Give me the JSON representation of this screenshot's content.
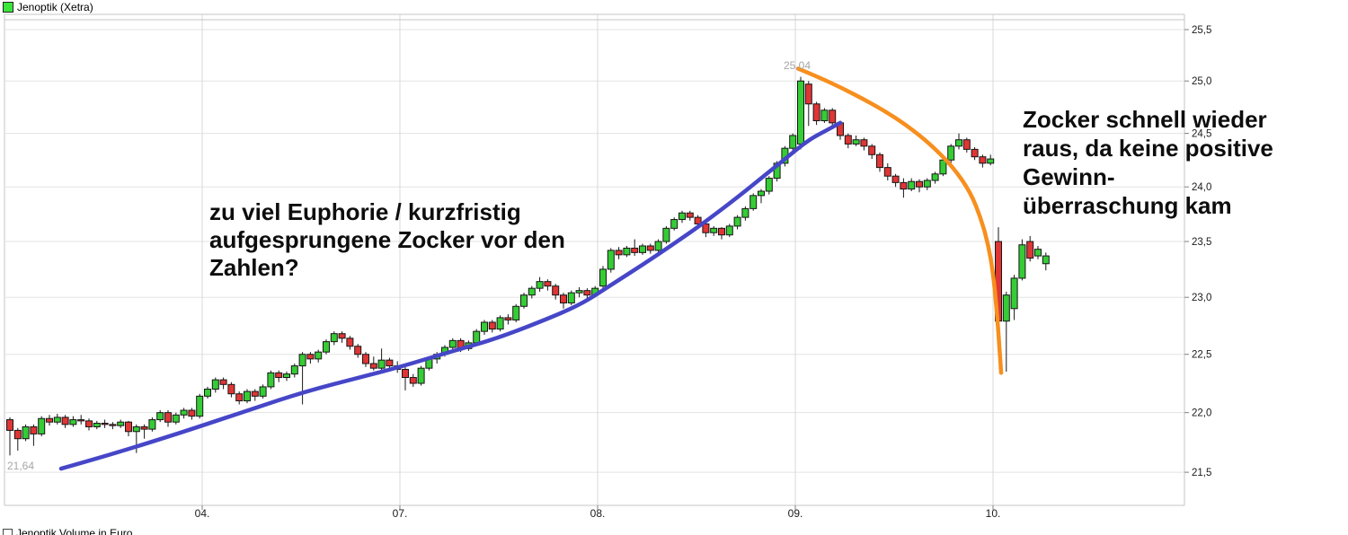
{
  "legend": {
    "price_series": {
      "label": "Jenoptik (Xetra)",
      "swatch_color": "#3ae63a"
    },
    "volume_series": {
      "label": "Jenoptik Volume in Euro",
      "swatch_color": "#ffffff"
    }
  },
  "annotations": [
    {
      "id": "euphorie",
      "lines": [
        "zu viel Euphorie / kurzfristig",
        "aufgesprungene Zocker vor den",
        "Zahlen?"
      ]
    },
    {
      "id": "zocker-raus",
      "lines": [
        "Zocker schnell wieder",
        "raus, da keine positive",
        "Gewinn-",
        "überraschung kam"
      ]
    }
  ],
  "chart_data": {
    "type": "candlestick",
    "title": "Jenoptik (Xetra)",
    "y_axis": {
      "side": "right",
      "scale": "log",
      "ticks": [
        {
          "label": "25,5",
          "value": 25.5
        },
        {
          "label": "25,0",
          "value": 25.0
        },
        {
          "label": "24,5",
          "value": 24.5
        },
        {
          "label": "24,0",
          "value": 24.0
        },
        {
          "label": "23,5",
          "value": 23.5
        },
        {
          "label": "23,0",
          "value": 23.0
        },
        {
          "label": "22,5",
          "value": 22.5
        },
        {
          "label": "22,0",
          "value": 22.0
        },
        {
          "label": "21,5",
          "value": 21.5
        }
      ]
    },
    "x_axis": {
      "ticks": [
        "04.",
        "07.",
        "08.",
        "09.",
        "10."
      ]
    },
    "point_labels": [
      {
        "text": "25,04",
        "value": 25.04,
        "position": "high"
      },
      {
        "text": "21,64",
        "value": 21.64,
        "position": "low"
      }
    ],
    "colors": {
      "up": "#35cc35",
      "down": "#e03535",
      "wick": "#161616",
      "body_stroke": "#161616",
      "trendline": "#4646c8",
      "drop_curve": "#f78f1e",
      "grid_h": "#e3e3e3",
      "grid_v": "#d8d8d8",
      "frame": "#c4c4c4",
      "tick": "#808080",
      "axis_text": "#1a1a1a"
    },
    "days": [
      {
        "label": "",
        "candles": [
          [
            21.94,
            21.96,
            21.64,
            21.85
          ],
          [
            21.85,
            21.87,
            21.68,
            21.78
          ],
          [
            21.78,
            21.9,
            21.76,
            21.88
          ],
          [
            21.88,
            21.9,
            21.72,
            21.82
          ],
          [
            21.82,
            21.97,
            21.8,
            21.95
          ],
          [
            21.95,
            21.98,
            21.89,
            21.92
          ],
          [
            21.92,
            21.99,
            21.9,
            21.96
          ],
          [
            21.96,
            21.98,
            21.87,
            21.9
          ],
          [
            21.9,
            21.97,
            21.88,
            21.94
          ],
          [
            21.94,
            21.98,
            21.9,
            21.93
          ],
          [
            21.93,
            21.95,
            21.85,
            21.88
          ],
          [
            21.88,
            21.93,
            21.86,
            21.91
          ],
          [
            21.91,
            21.94,
            21.87,
            21.9
          ],
          [
            21.9,
            21.92,
            21.86,
            21.89
          ],
          [
            21.89,
            21.94,
            21.87,
            21.92
          ],
          [
            21.92,
            21.93,
            21.8,
            21.84
          ],
          [
            21.84,
            21.9,
            21.66,
            21.88
          ],
          [
            21.88,
            21.9,
            21.78,
            21.86
          ],
          [
            21.86,
            21.96,
            21.84,
            21.94
          ],
          [
            21.94,
            22.02,
            21.92,
            22.0
          ],
          [
            22.0,
            22.02,
            21.88,
            21.92
          ],
          [
            21.92,
            22.0,
            21.9,
            21.98
          ],
          [
            21.98,
            22.04,
            21.95,
            22.02
          ],
          [
            22.02,
            22.04,
            21.94,
            21.97
          ],
          [
            21.97,
            22.16,
            21.95,
            22.14
          ]
        ]
      },
      {
        "label": "04.",
        "candles": [
          [
            22.14,
            22.22,
            22.12,
            22.2
          ],
          [
            22.2,
            22.3,
            22.17,
            22.28
          ],
          [
            22.28,
            22.3,
            22.2,
            22.24
          ],
          [
            22.24,
            22.26,
            22.13,
            22.16
          ],
          [
            22.16,
            22.18,
            22.07,
            22.1
          ],
          [
            22.1,
            22.2,
            22.08,
            22.18
          ],
          [
            22.18,
            22.2,
            22.1,
            22.14
          ],
          [
            22.14,
            22.24,
            22.12,
            22.22
          ],
          [
            22.22,
            22.36,
            22.2,
            22.34
          ],
          [
            22.34,
            22.36,
            22.26,
            22.3
          ],
          [
            22.3,
            22.35,
            22.27,
            22.33
          ],
          [
            22.33,
            22.42,
            22.3,
            22.4
          ],
          [
            22.4,
            22.52,
            22.07,
            22.5
          ],
          [
            22.5,
            22.52,
            22.42,
            22.46
          ],
          [
            22.46,
            22.54,
            22.43,
            22.52
          ],
          [
            22.52,
            22.63,
            22.5,
            22.61
          ],
          [
            22.61,
            22.7,
            22.58,
            22.68
          ],
          [
            22.68,
            22.7,
            22.6,
            22.64
          ],
          [
            22.64,
            22.66,
            22.54,
            22.57
          ],
          [
            22.57,
            22.59,
            22.47,
            22.5
          ],
          [
            22.5,
            22.52,
            22.39,
            22.42
          ],
          [
            22.42,
            22.48,
            22.36,
            22.38
          ],
          [
            22.38,
            22.55,
            22.36,
            22.45
          ],
          [
            22.45,
            22.47,
            22.37,
            22.4
          ],
          [
            22.4,
            22.44,
            22.34,
            22.37
          ]
        ]
      },
      {
        "label": "07.",
        "candles": [
          [
            22.37,
            22.42,
            22.19,
            22.3
          ],
          [
            22.3,
            22.33,
            22.22,
            22.25
          ],
          [
            22.25,
            22.4,
            22.23,
            22.38
          ],
          [
            22.38,
            22.48,
            22.36,
            22.46
          ],
          [
            22.46,
            22.52,
            22.42,
            22.5
          ],
          [
            22.5,
            22.58,
            22.48,
            22.56
          ],
          [
            22.56,
            22.64,
            22.53,
            22.62
          ],
          [
            22.62,
            22.64,
            22.52,
            22.55
          ],
          [
            22.55,
            22.62,
            22.53,
            22.6
          ],
          [
            22.6,
            22.72,
            22.58,
            22.7
          ],
          [
            22.7,
            22.8,
            22.67,
            22.78
          ],
          [
            22.78,
            22.8,
            22.69,
            22.72
          ],
          [
            22.72,
            22.84,
            22.7,
            22.82
          ],
          [
            22.82,
            22.85,
            22.76,
            22.8
          ],
          [
            22.8,
            22.94,
            22.78,
            22.92
          ],
          [
            22.92,
            23.04,
            22.9,
            23.02
          ],
          [
            23.02,
            23.1,
            22.99,
            23.08
          ],
          [
            23.08,
            23.18,
            23.05,
            23.14
          ],
          [
            23.14,
            23.16,
            23.06,
            23.1
          ],
          [
            23.1,
            23.12,
            22.98,
            23.02
          ],
          [
            23.02,
            23.04,
            22.9,
            22.95
          ],
          [
            22.95,
            23.06,
            22.93,
            23.04
          ],
          [
            23.04,
            23.09,
            23.0,
            23.06
          ],
          [
            23.06,
            23.08,
            22.98,
            23.02
          ],
          [
            23.02,
            23.1,
            23.0,
            23.08
          ]
        ]
      },
      {
        "label": "08.",
        "candles": [
          [
            23.1,
            23.28,
            23.08,
            23.25
          ],
          [
            23.25,
            23.44,
            23.22,
            23.42
          ],
          [
            23.42,
            23.45,
            23.34,
            23.38
          ],
          [
            23.38,
            23.46,
            23.36,
            23.44
          ],
          [
            23.44,
            23.52,
            23.37,
            23.4
          ],
          [
            23.4,
            23.48,
            23.38,
            23.46
          ],
          [
            23.46,
            23.48,
            23.39,
            23.42
          ],
          [
            23.42,
            23.52,
            23.4,
            23.5
          ],
          [
            23.5,
            23.64,
            23.48,
            23.62
          ],
          [
            23.62,
            23.72,
            23.6,
            23.7
          ],
          [
            23.7,
            23.78,
            23.67,
            23.76
          ],
          [
            23.76,
            23.78,
            23.69,
            23.72
          ],
          [
            23.72,
            23.74,
            23.63,
            23.66
          ],
          [
            23.66,
            23.68,
            23.54,
            23.58
          ],
          [
            23.58,
            23.64,
            23.55,
            23.62
          ],
          [
            23.62,
            23.63,
            23.52,
            23.56
          ],
          [
            23.56,
            23.66,
            23.54,
            23.64
          ],
          [
            23.64,
            23.74,
            23.61,
            23.72
          ],
          [
            23.72,
            23.82,
            23.69,
            23.8
          ],
          [
            23.8,
            23.94,
            23.78,
            23.92
          ],
          [
            23.92,
            23.98,
            23.85,
            23.96
          ],
          [
            23.96,
            24.1,
            23.93,
            24.08
          ],
          [
            24.08,
            24.24,
            24.05,
            24.22
          ],
          [
            24.22,
            24.38,
            24.19,
            24.36
          ],
          [
            24.36,
            24.5,
            24.32,
            24.48
          ]
        ]
      },
      {
        "label": "09.",
        "candles": [
          [
            24.4,
            25.04,
            24.35,
            25.0
          ],
          [
            24.97,
            25.0,
            24.57,
            24.78
          ],
          [
            24.78,
            24.8,
            24.58,
            24.62
          ],
          [
            24.62,
            24.74,
            24.6,
            24.72
          ],
          [
            24.72,
            24.74,
            24.56,
            24.6
          ],
          [
            24.6,
            24.62,
            24.44,
            24.48
          ],
          [
            24.48,
            24.5,
            24.36,
            24.4
          ],
          [
            24.4,
            24.48,
            24.38,
            24.44
          ],
          [
            24.44,
            24.46,
            24.34,
            24.38
          ],
          [
            24.38,
            24.4,
            24.26,
            24.3
          ],
          [
            24.3,
            24.32,
            24.14,
            24.18
          ],
          [
            24.18,
            24.22,
            24.06,
            24.1
          ],
          [
            24.1,
            24.12,
            24.0,
            24.04
          ],
          [
            24.04,
            24.08,
            23.9,
            23.98
          ],
          [
            23.98,
            24.08,
            23.96,
            24.05
          ],
          [
            24.05,
            24.07,
            23.95,
            24.0
          ],
          [
            24.0,
            24.08,
            23.97,
            24.06
          ],
          [
            24.06,
            24.14,
            24.03,
            24.12
          ],
          [
            24.12,
            24.28,
            24.1,
            24.25
          ],
          [
            24.25,
            24.4,
            24.22,
            24.38
          ],
          [
            24.38,
            24.5,
            24.35,
            24.44
          ],
          [
            24.44,
            24.46,
            24.32,
            24.35
          ],
          [
            24.35,
            24.37,
            24.25,
            24.28
          ],
          [
            24.28,
            24.3,
            24.18,
            24.22
          ],
          [
            24.22,
            24.3,
            24.2,
            24.26
          ]
        ]
      },
      {
        "label": "10.",
        "candles": [
          [
            23.5,
            23.63,
            22.78,
            22.79
          ],
          [
            22.79,
            23.05,
            22.35,
            23.02
          ],
          [
            22.9,
            23.2,
            22.8,
            23.17
          ],
          [
            23.17,
            23.52,
            23.15,
            23.47
          ],
          [
            23.5,
            23.55,
            23.32,
            23.35
          ],
          [
            23.37,
            23.46,
            23.34,
            23.43
          ],
          [
            23.3,
            23.4,
            23.24,
            23.37
          ]
        ]
      }
    ],
    "overlays": [
      {
        "name": "support-trendline",
        "color_key": "trendline",
        "points": [
          [
            68,
            21.53
          ],
          [
            120,
            21.64
          ],
          [
            180,
            21.78
          ],
          [
            225,
            21.89
          ],
          [
            280,
            22.03
          ],
          [
            340,
            22.18
          ],
          [
            400,
            22.3
          ],
          [
            445,
            22.39
          ],
          [
            500,
            22.52
          ],
          [
            550,
            22.63
          ],
          [
            600,
            22.78
          ],
          [
            645,
            22.93
          ],
          [
            680,
            23.11
          ],
          [
            715,
            23.29
          ],
          [
            750,
            23.48
          ],
          [
            785,
            23.68
          ],
          [
            820,
            23.9
          ],
          [
            850,
            24.1
          ],
          [
            875,
            24.27
          ],
          [
            900,
            24.44
          ],
          [
            920,
            24.53
          ],
          [
            935,
            24.6
          ]
        ]
      },
      {
        "name": "breakdown-curve",
        "color_key": "drop_curve",
        "points": [
          [
            888,
            25.12
          ],
          [
            910,
            25.04
          ],
          [
            935,
            24.94
          ],
          [
            960,
            24.83
          ],
          [
            985,
            24.71
          ],
          [
            1010,
            24.57
          ],
          [
            1035,
            24.4
          ],
          [
            1060,
            24.19
          ],
          [
            1080,
            23.95
          ],
          [
            1092,
            23.7
          ],
          [
            1100,
            23.46
          ],
          [
            1105,
            23.22
          ],
          [
            1109,
            22.9
          ],
          [
            1112,
            22.58
          ],
          [
            1114,
            22.34
          ]
        ]
      }
    ]
  }
}
